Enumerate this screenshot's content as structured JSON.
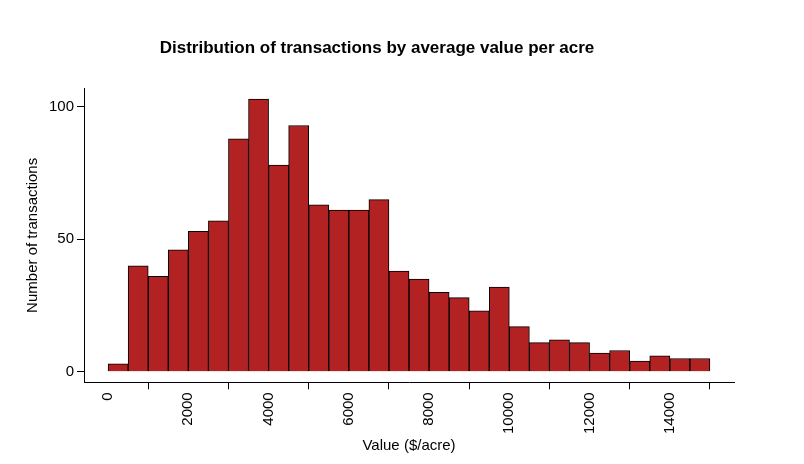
{
  "chart_data": {
    "type": "histogram",
    "title": "Distribution of transactions by average value per acre",
    "x_label": "Value ($/acre)",
    "y_label": "Number of transactions",
    "bins": [
      0,
      500,
      1000,
      1500,
      2000,
      2500,
      3000,
      3500,
      4000,
      4500,
      5000,
      5500,
      6000,
      6500,
      7000,
      7500,
      8000,
      8500,
      9000,
      9500,
      10000,
      10500,
      11000,
      11500,
      12000,
      12500,
      13000,
      13500,
      14000,
      14500,
      15000
    ],
    "values": [
      3,
      40,
      36,
      46,
      53,
      57,
      88,
      103,
      78,
      93,
      63,
      61,
      61,
      65,
      38,
      35,
      30,
      28,
      23,
      32,
      17,
      11,
      12,
      11,
      7,
      8,
      4,
      6,
      5,
      5
    ],
    "color": "#b22222",
    "xlim": [
      -600,
      15600
    ],
    "xticks": [
      0,
      2000,
      4000,
      6000,
      8000,
      10000,
      12000,
      14000
    ],
    "ylim": [
      -4,
      107
    ],
    "yticks": [
      0,
      50,
      100
    ],
    "grid": false
  }
}
